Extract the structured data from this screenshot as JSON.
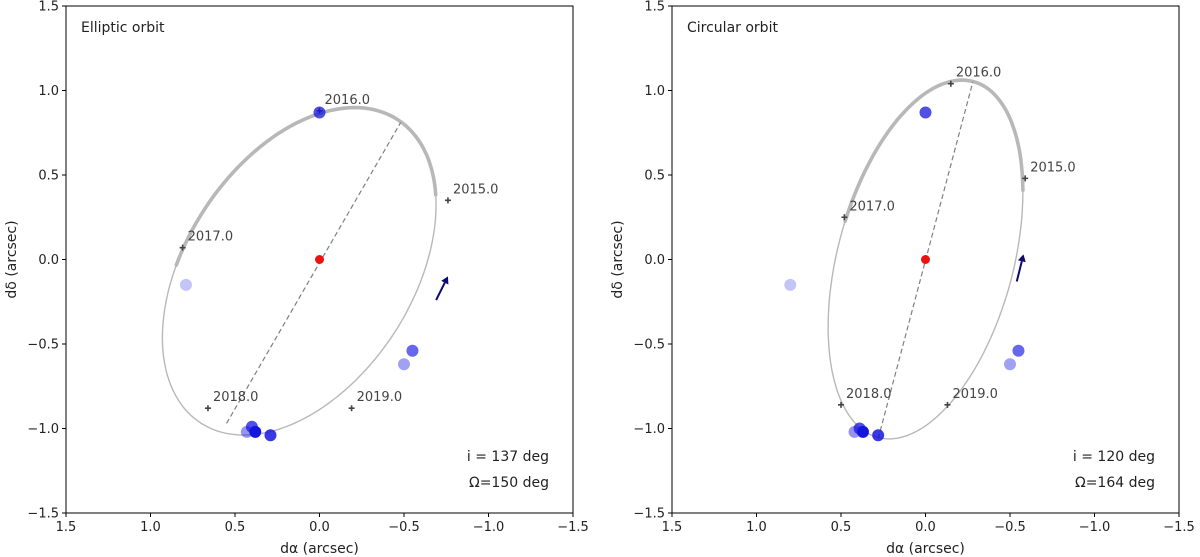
{
  "chart_data": [
    {
      "type": "scatter",
      "title": "Elliptic orbit",
      "xlabel": "dα (arcsec)",
      "ylabel": "dδ (arcsec)",
      "xlim": [
        1.5,
        -1.5
      ],
      "ylim": [
        -1.5,
        1.5
      ],
      "xticks": [
        "1.5",
        "1.0",
        "0.5",
        "0.0",
        "−0.5",
        "−1.0",
        "−1.5"
      ],
      "yticks": [
        "1.5",
        "1.0",
        "0.5",
        "0.0",
        "−0.5",
        "−1.0",
        "−1.5"
      ],
      "annotations": [
        "i = 137 deg",
        "Ω=150 deg"
      ],
      "central_star": {
        "x": 0.0,
        "y": 0.0,
        "color": "#ee1111"
      },
      "orbit": {
        "center": [
          0.12,
          -0.07
        ],
        "semi_axes": [
          0.67,
          1.07
        ],
        "rotation_deg": 33,
        "thick_arc": [
          50,
          200
        ]
      },
      "line_of_nodes": {
        "from": [
          0.55,
          -0.97
        ],
        "to": [
          -0.48,
          0.81
        ]
      },
      "epochs": [
        {
          "label": "2015.0",
          "x": -0.76,
          "y": 0.35
        },
        {
          "label": "2016.0",
          "x": 0.0,
          "y": 0.88
        },
        {
          "label": "2017.0",
          "x": 0.81,
          "y": 0.07
        },
        {
          "label": "2018.0",
          "x": 0.66,
          "y": -0.88
        },
        {
          "label": "2019.0",
          "x": -0.19,
          "y": -0.88
        }
      ],
      "motion_arrow": {
        "from": [
          -0.69,
          -0.24
        ],
        "to": [
          -0.76,
          -0.1
        ]
      },
      "observations": [
        {
          "x": 0.79,
          "y": -0.15,
          "alpha": 0.25
        },
        {
          "x": 0.0,
          "y": 0.87,
          "alpha": 0.75
        },
        {
          "x": -0.55,
          "y": -0.54,
          "alpha": 0.65
        },
        {
          "x": -0.5,
          "y": -0.62,
          "alpha": 0.4
        },
        {
          "x": 0.43,
          "y": -1.02,
          "alpha": 0.45
        },
        {
          "x": 0.4,
          "y": -0.99,
          "alpha": 0.75
        },
        {
          "x": 0.38,
          "y": -1.02,
          "alpha": 1.0
        },
        {
          "x": 0.29,
          "y": -1.04,
          "alpha": 0.85
        }
      ]
    },
    {
      "type": "scatter",
      "title": "Circular orbit",
      "xlabel": "dα (arcsec)",
      "ylabel": "dδ (arcsec)",
      "xlim": [
        1.5,
        -1.5
      ],
      "ylim": [
        -1.5,
        1.5
      ],
      "xticks": [
        "1.5",
        "1.0",
        "0.5",
        "0.0",
        "−0.5",
        "−1.0",
        "−1.5"
      ],
      "yticks": [
        "1.5",
        "1.0",
        "0.5",
        "0.0",
        "−0.5",
        "−1.0",
        "−1.5"
      ],
      "annotations": [
        "i = 120 deg",
        "Ω=164 deg"
      ],
      "central_star": {
        "x": 0.0,
        "y": 0.0,
        "color": "#ee1111"
      },
      "orbit": {
        "center": [
          0.0,
          0.0
        ],
        "semi_axes": [
          0.52,
          1.09
        ],
        "rotation_deg": 15,
        "thick_arc": [
          30,
          175
        ]
      },
      "line_of_nodes": {
        "from": [
          0.28,
          -1.06
        ],
        "to": [
          -0.28,
          1.05
        ]
      },
      "epochs": [
        {
          "label": "2015.0",
          "x": -0.59,
          "y": 0.48
        },
        {
          "label": "2016.0",
          "x": -0.15,
          "y": 1.04
        },
        {
          "label": "2017.0",
          "x": 0.48,
          "y": 0.25
        },
        {
          "label": "2018.0",
          "x": 0.5,
          "y": -0.86
        },
        {
          "label": "2019.0",
          "x": -0.13,
          "y": -0.86
        }
      ],
      "motion_arrow": {
        "from": [
          -0.54,
          -0.13
        ],
        "to": [
          -0.58,
          0.03
        ]
      },
      "observations": [
        {
          "x": 0.8,
          "y": -0.15,
          "alpha": 0.25
        },
        {
          "x": 0.0,
          "y": 0.87,
          "alpha": 0.75
        },
        {
          "x": -0.55,
          "y": -0.54,
          "alpha": 0.65
        },
        {
          "x": -0.5,
          "y": -0.62,
          "alpha": 0.4
        },
        {
          "x": 0.42,
          "y": -1.02,
          "alpha": 0.45
        },
        {
          "x": 0.39,
          "y": -1.0,
          "alpha": 0.75
        },
        {
          "x": 0.37,
          "y": -1.02,
          "alpha": 1.0
        },
        {
          "x": 0.28,
          "y": -1.04,
          "alpha": 0.85
        }
      ]
    }
  ],
  "colors": {
    "orbit": "#b8b8b8",
    "nodes_line": "#808080",
    "epoch_marker": "#444444",
    "observation": "#1515e0",
    "arrow": "#0a0a70"
  }
}
